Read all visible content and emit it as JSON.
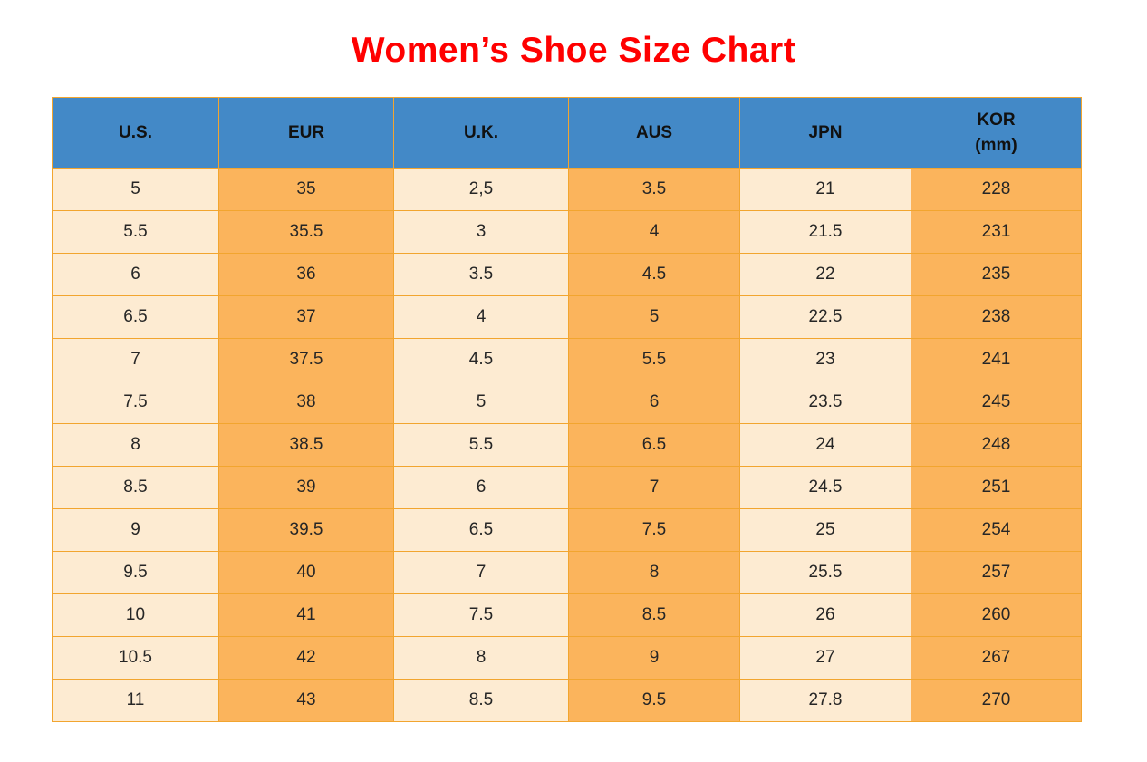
{
  "title": "Women’s Shoe Size Chart",
  "colors": {
    "title_red": "#FF0000",
    "header_blue": "#4389C7",
    "cell_cream": "#FDEBD2",
    "cell_orange": "#FBB45C",
    "border_amber": "#F2A52F",
    "header_text": "#111111",
    "cell_text": "#262626"
  },
  "table": {
    "headers": [
      {
        "id": "us",
        "label": "U.S."
      },
      {
        "id": "eur",
        "label": "EUR"
      },
      {
        "id": "uk",
        "label": "U.K."
      },
      {
        "id": "aus",
        "label": "AUS"
      },
      {
        "id": "jpn",
        "label": "JPN"
      },
      {
        "id": "kor",
        "label": "KOR",
        "sub": "(mm)"
      }
    ]
  },
  "chart_data": {
    "type": "table",
    "title": "Women’s Shoe Size Chart",
    "columns": [
      "U.S.",
      "EUR",
      "U.K.",
      "AUS",
      "JPN",
      "KOR (mm)"
    ],
    "rows": [
      [
        "5",
        "35",
        "2,5",
        "3.5",
        "21",
        "228"
      ],
      [
        "5.5",
        "35.5",
        "3",
        "4",
        "21.5",
        "231"
      ],
      [
        "6",
        "36",
        "3.5",
        "4.5",
        "22",
        "235"
      ],
      [
        "6.5",
        "37",
        "4",
        "5",
        "22.5",
        "238"
      ],
      [
        "7",
        "37.5",
        "4.5",
        "5.5",
        "23",
        "241"
      ],
      [
        "7.5",
        "38",
        "5",
        "6",
        "23.5",
        "245"
      ],
      [
        "8",
        "38.5",
        "5.5",
        "6.5",
        "24",
        "248"
      ],
      [
        "8.5",
        "39",
        "6",
        "7",
        "24.5",
        "251"
      ],
      [
        "9",
        "39.5",
        "6.5",
        "7.5",
        "25",
        "254"
      ],
      [
        "9.5",
        "40",
        "7",
        "8",
        "25.5",
        "257"
      ],
      [
        "10",
        "41",
        "7.5",
        "8.5",
        "26",
        "260"
      ],
      [
        "10.5",
        "42",
        "8",
        "9",
        "27",
        "267"
      ],
      [
        "11",
        "43",
        "8.5",
        "9.5",
        "27.8",
        "270"
      ]
    ]
  }
}
